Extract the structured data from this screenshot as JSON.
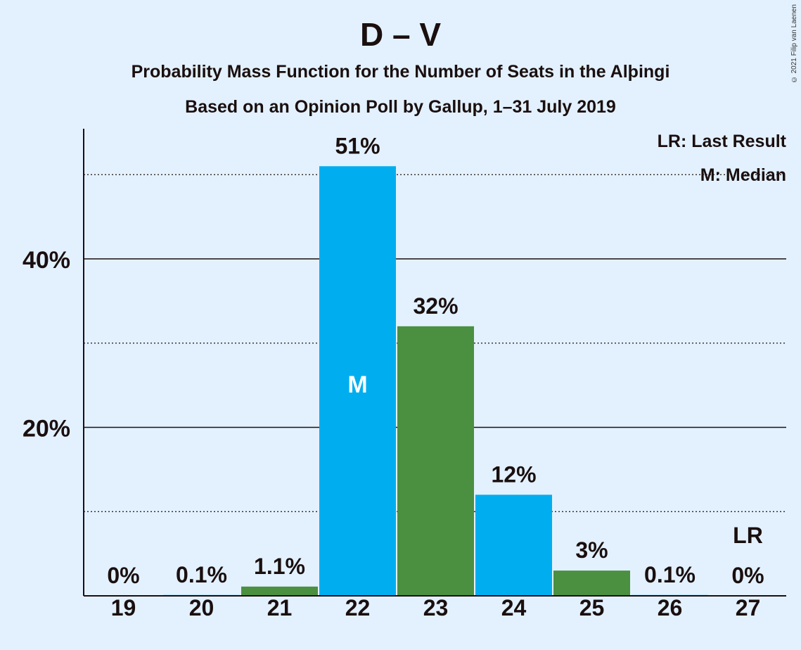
{
  "chart_data": {
    "type": "bar",
    "title": "D – V",
    "subtitle": "Probability Mass Function for the Number of Seats in the Alþingi",
    "subtitle2": "Based on an Opinion Poll by Gallup, 1–31 July 2019",
    "copyright": "© 2021 Filip van Laenen",
    "categories": [
      "19",
      "20",
      "21",
      "22",
      "23",
      "24",
      "25",
      "26",
      "27"
    ],
    "values": [
      0,
      0.1,
      1.1,
      51,
      32,
      12,
      3,
      0.1,
      0
    ],
    "value_labels": [
      "0%",
      "0.1%",
      "1.1%",
      "51%",
      "32%",
      "12%",
      "3%",
      "0.1%",
      "0%"
    ],
    "bar_colors": [
      "#4a9040",
      "#00aeef",
      "#4a9040",
      "#00aeef",
      "#4a9040",
      "#00aeef",
      "#4a9040",
      "#00aeef",
      "#4a9040"
    ],
    "ylim": [
      0,
      55
    ],
    "yticks": [
      20,
      40
    ],
    "ytick_labels": [
      "20%",
      "40%"
    ],
    "minor_gridlines": [
      10,
      30,
      50
    ],
    "median_category": "22",
    "median_marker": "M",
    "last_result_category": "27",
    "last_result_marker": "LR",
    "legend": {
      "lr": "LR: Last Result",
      "median": "M: Median",
      "position": "top-right"
    }
  }
}
